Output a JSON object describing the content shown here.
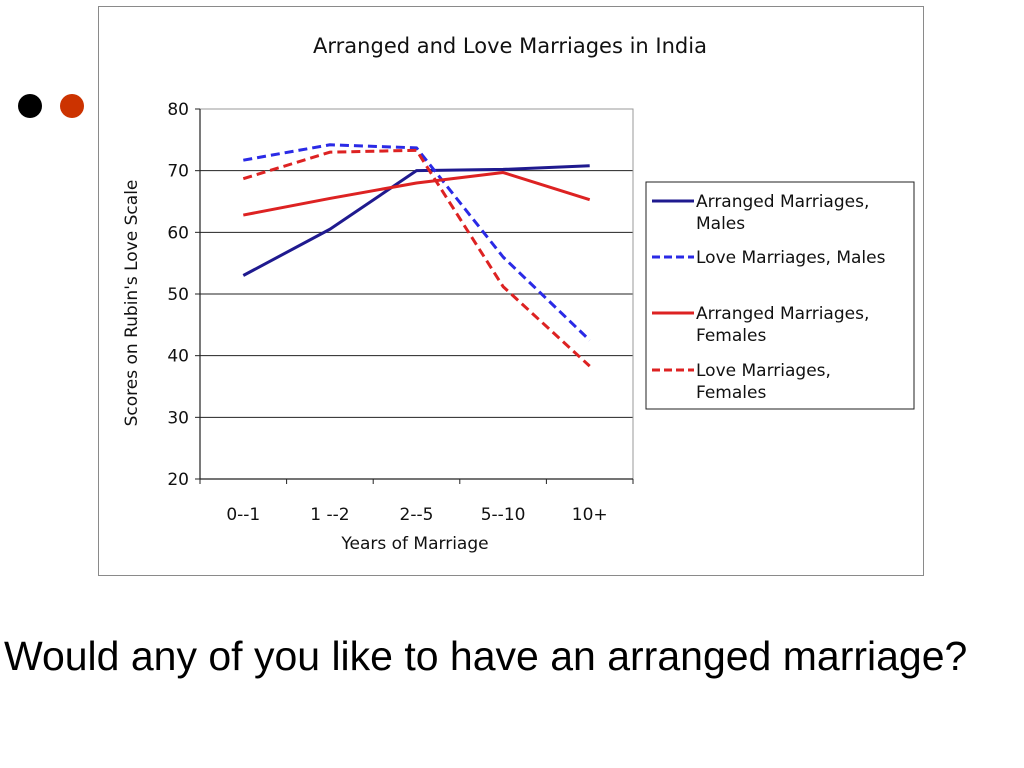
{
  "slide": {
    "bullets": [
      {
        "color": "#000000"
      },
      {
        "color": "#cc3300"
      }
    ],
    "question": "Would any of you like to have an arranged marriage?"
  },
  "chart_data": {
    "type": "line",
    "title": "Arranged and Love Marriages in India",
    "xlabel": "Years of Marriage",
    "ylabel": "Scores on Rubin's Love Scale",
    "categories": [
      "0--1",
      "1 --2",
      "2--5",
      "5--10",
      "10+"
    ],
    "ylim": [
      20,
      80
    ],
    "yticks": [
      20,
      30,
      40,
      50,
      60,
      70,
      80
    ],
    "grid": "horizontal",
    "legend_position": "right",
    "series": [
      {
        "name": "Arranged Marriages, Males",
        "color": "#1f1a8f",
        "dash": "solid",
        "values": [
          53,
          60.5,
          70,
          70.2,
          70.8
        ]
      },
      {
        "name": "Love Marriages, Males",
        "color": "#2a2ae6",
        "dash": "dashed",
        "values": [
          71.7,
          74.2,
          73.7,
          56,
          42.5
        ]
      },
      {
        "name": "Arranged Marriages, Females",
        "color": "#dd2222",
        "dash": "solid",
        "values": [
          62.8,
          65.5,
          68,
          69.7,
          65.3
        ]
      },
      {
        "name": "Love Marriages, Females",
        "color": "#dd2222",
        "dash": "dashed",
        "values": [
          68.7,
          73,
          73.3,
          51.2,
          38.3
        ]
      }
    ]
  }
}
